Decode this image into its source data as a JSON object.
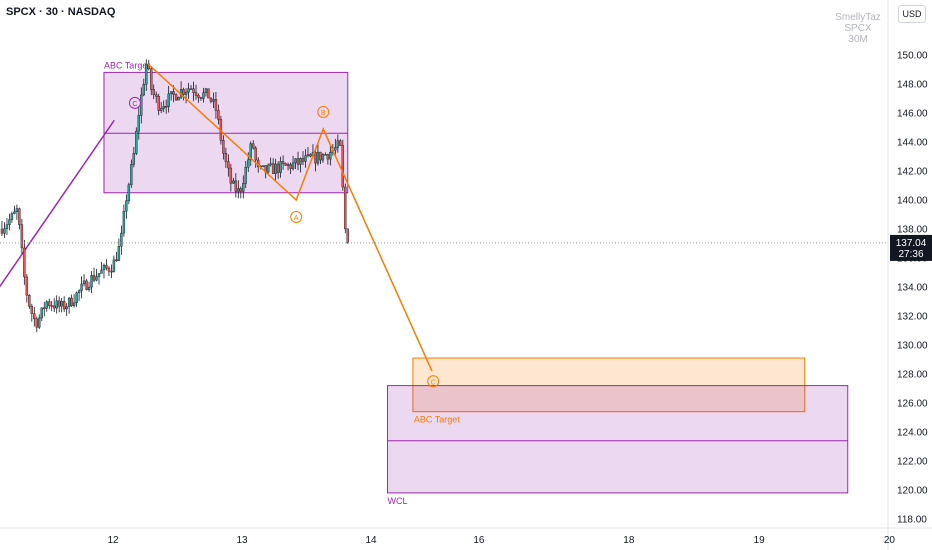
{
  "header": {
    "symbol": "SPCX · 30 · NASDAQ",
    "currency": "USD"
  },
  "watermark": [
    "SmellyTaz",
    "SPCX",
    "30M"
  ],
  "price_label": {
    "price": "137.04",
    "countdown": "27:36"
  },
  "annotations": {
    "box1_label": "ABC Target",
    "box2_label": "ABC Target",
    "box3_label": "WCL",
    "wave_a": "A",
    "wave_b": "B",
    "wave_c": "C"
  },
  "colors": {
    "up": "#26a69a",
    "down": "#ef5350",
    "purple": "#9c27b0",
    "orange": "#f57c00",
    "axis_text": "#131722"
  },
  "chart_data": {
    "type": "candlestick",
    "y_ticks": [
      118,
      120,
      122,
      124,
      126,
      128,
      130,
      132,
      134,
      136,
      138,
      140,
      142,
      144,
      146,
      148,
      150
    ],
    "y_tick_labels": [
      "118.00",
      "120.00",
      "122.00",
      "124.00",
      "126.00",
      "128.00",
      "130.00",
      "132.00",
      "134.00",
      "136.00",
      "138.00",
      "140.00",
      "142.00",
      "144.00",
      "146.00",
      "148.00",
      "150.00"
    ],
    "x_ticks": [
      {
        "label": "12",
        "x": 12.0
      },
      {
        "label": "13",
        "x": 13.0
      },
      {
        "label": "14",
        "x": 14.0
      },
      {
        "label": "16",
        "x": 14.85
      },
      {
        "label": "18",
        "x": 16.0
      },
      {
        "label": "19",
        "x": 17.0
      },
      {
        "label": "20",
        "x": 18.0
      }
    ],
    "last_price": 137.04,
    "close_path": [
      [
        11.12,
        138.0
      ],
      [
        11.16,
        138.3
      ],
      [
        11.22,
        138.8
      ],
      [
        11.26,
        139.3
      ],
      [
        11.28,
        137.5
      ],
      [
        11.32,
        134.0
      ],
      [
        11.36,
        132.5
      ],
      [
        11.4,
        131.5
      ],
      [
        11.44,
        132.0
      ],
      [
        11.48,
        133.0
      ],
      [
        11.54,
        132.8
      ],
      [
        11.6,
        132.6
      ],
      [
        11.66,
        132.9
      ],
      [
        11.7,
        133.3
      ],
      [
        11.76,
        133.9
      ],
      [
        11.82,
        134.5
      ],
      [
        11.9,
        135.0
      ],
      [
        12.0,
        135.5
      ],
      [
        12.06,
        137.0
      ],
      [
        12.1,
        140.0
      ],
      [
        12.16,
        143.0
      ],
      [
        12.2,
        146.0
      ],
      [
        12.26,
        149.5
      ],
      [
        12.3,
        147.5
      ],
      [
        12.36,
        146.5
      ],
      [
        12.44,
        147.0
      ],
      [
        12.52,
        147.5
      ],
      [
        12.6,
        147.8
      ],
      [
        12.68,
        147.3
      ],
      [
        12.74,
        147.2
      ],
      [
        12.8,
        146.2
      ],
      [
        12.86,
        143.0
      ],
      [
        12.92,
        141.0
      ],
      [
        12.98,
        140.5
      ],
      [
        13.04,
        142.5
      ],
      [
        13.08,
        144.0
      ],
      [
        13.12,
        142.0
      ],
      [
        13.18,
        142.0
      ],
      [
        13.26,
        142.2
      ],
      [
        13.34,
        142.3
      ],
      [
        13.42,
        142.5
      ],
      [
        13.52,
        142.8
      ],
      [
        13.6,
        143.0
      ],
      [
        13.66,
        143.2
      ],
      [
        13.72,
        143.5
      ],
      [
        13.76,
        143.8
      ],
      [
        13.8,
        138.0
      ],
      [
        13.82,
        137.04
      ]
    ],
    "wave_pattern": [
      [
        12.27,
        149.4
      ],
      [
        13.42,
        140.0
      ],
      [
        13.63,
        144.9
      ],
      [
        14.48,
        128.2
      ]
    ],
    "purple_diagonal": [
      [
        11.12,
        134.0
      ],
      [
        12.01,
        145.5
      ]
    ],
    "zones": [
      {
        "name": "ABC Target",
        "color": "purple",
        "x": [
          11.93,
          13.82
        ],
        "y": [
          140.5,
          148.8
        ],
        "mid": 144.6
      },
      {
        "name": "ABC Target",
        "color": "orange",
        "x": [
          14.33,
          17.35
        ],
        "y": [
          125.4,
          129.1
        ],
        "mid": null
      },
      {
        "name": "WCL",
        "color": "purple",
        "x": [
          14.13,
          17.68
        ],
        "y": [
          119.8,
          127.2
        ],
        "mid": 123.4
      }
    ]
  }
}
